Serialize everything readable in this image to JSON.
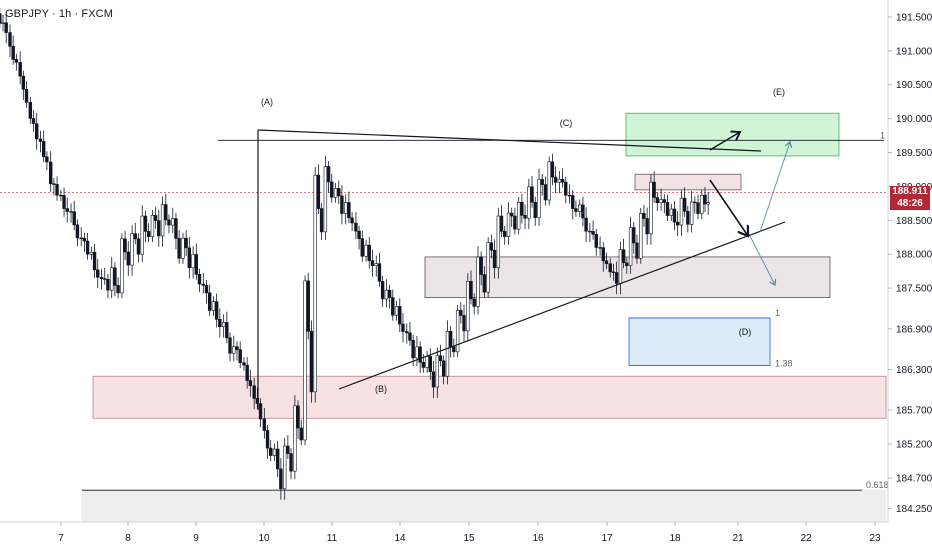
{
  "header": {
    "title": "GBPJPY · 1h · FXCM"
  },
  "price_tag": {
    "price": "188.911",
    "countdown": "48:26"
  },
  "colors": {
    "up": "#26a69a",
    "down": "#ef5350",
    "candle": "#131722",
    "target_zone": "#c8f2cf",
    "support_zone": "#f6dde0",
    "consolidation_zone": "#e6e0e2",
    "projection_zone": "#d6e8f6"
  },
  "chart_data": {
    "type": "candlestick",
    "symbol": "GBPJPY",
    "timeframe": "1h",
    "source": "FXCM",
    "ylim": [
      184.05,
      191.75
    ],
    "y_ticks": [
      "191.500",
      "191.000",
      "190.500",
      "190.000",
      "189.500",
      "189.000",
      "188.500",
      "188.000",
      "187.500",
      "186.900",
      "186.300",
      "185.700",
      "185.200",
      "184.700",
      "184.250"
    ],
    "x_ticks": [
      "7",
      "8",
      "9",
      "10",
      "11",
      "14",
      "15",
      "16",
      "17",
      "18",
      "21",
      "22",
      "23"
    ],
    "wave_labels": [
      "(A)",
      "(B)",
      "(C)",
      "(D)",
      "(E)"
    ],
    "fib_labels": [
      "1",
      "1",
      "1.38",
      "0.618"
    ],
    "current_price": 188.911,
    "price_path": [
      [
        191.55,
        191.3
      ],
      [
        191.2,
        190.8
      ],
      [
        190.7,
        190.3
      ],
      [
        190.2,
        189.7
      ],
      [
        189.8,
        189.3
      ],
      [
        189.2,
        188.9
      ],
      [
        189.0,
        188.6
      ],
      [
        188.7,
        188.3
      ],
      [
        188.4,
        188.0
      ],
      [
        188.2,
        187.6
      ],
      [
        187.8,
        187.5
      ],
      [
        188.0,
        187.4
      ],
      [
        188.3,
        187.9
      ],
      [
        188.5,
        188.0
      ],
      [
        188.7,
        188.2
      ],
      [
        188.8,
        188.3
      ],
      [
        188.9,
        188.4
      ],
      [
        188.7,
        188.0
      ],
      [
        188.5,
        187.8
      ],
      [
        188.2,
        187.5
      ],
      [
        187.8,
        187.2
      ],
      [
        187.5,
        186.9
      ],
      [
        187.1,
        186.6
      ],
      [
        186.8,
        186.4
      ],
      [
        186.5,
        186.0
      ],
      [
        186.1,
        185.6
      ],
      [
        185.6,
        185.0
      ],
      [
        185.3,
        184.6
      ],
      [
        185.4,
        184.8
      ],
      [
        186.0,
        185.2
      ],
      [
        188.5,
        186.0
      ],
      [
        189.6,
        188.3
      ],
      [
        189.4,
        188.9
      ],
      [
        189.2,
        188.6
      ],
      [
        188.9,
        188.4
      ],
      [
        188.6,
        188.0
      ],
      [
        188.3,
        187.8
      ],
      [
        188.0,
        187.4
      ],
      [
        187.7,
        187.1
      ],
      [
        187.4,
        186.8
      ],
      [
        187.1,
        186.5
      ],
      [
        186.8,
        186.3
      ],
      [
        186.6,
        186.1
      ],
      [
        186.7,
        186.2
      ],
      [
        187.0,
        186.5
      ],
      [
        187.4,
        186.9
      ],
      [
        187.8,
        187.2
      ],
      [
        188.1,
        187.5
      ],
      [
        188.4,
        187.8
      ],
      [
        188.7,
        188.2
      ],
      [
        188.8,
        188.4
      ],
      [
        188.9,
        188.5
      ],
      [
        189.1,
        188.6
      ],
      [
        189.3,
        188.8
      ],
      [
        189.5,
        189.0
      ],
      [
        189.3,
        188.9
      ],
      [
        189.0,
        188.6
      ],
      [
        188.8,
        188.4
      ],
      [
        188.5,
        188.1
      ],
      [
        188.2,
        187.8
      ],
      [
        187.9,
        187.6
      ],
      [
        188.2,
        187.8
      ],
      [
        188.5,
        188.0
      ],
      [
        188.8,
        188.3
      ],
      [
        189.2,
        188.7
      ],
      [
        189.0,
        188.6
      ],
      [
        188.8,
        188.4
      ],
      [
        188.9,
        188.5
      ],
      [
        188.9,
        188.6
      ],
      [
        188.911,
        188.7
      ]
    ],
    "zones": [
      {
        "name": "target-zone",
        "range": [
          189.45,
          190.08
        ]
      },
      {
        "name": "resistance-zone",
        "range": [
          188.95,
          189.18
        ]
      },
      {
        "name": "consolidation-zone",
        "range": [
          187.36,
          187.96
        ]
      },
      {
        "name": "projection-zone-d",
        "range": [
          186.36,
          187.06
        ]
      },
      {
        "name": "support-zone",
        "range": [
          185.58,
          186.2
        ]
      },
      {
        "name": "bottom-zone",
        "range": [
          184.05,
          184.52
        ]
      }
    ],
    "levels": [
      {
        "label": "1",
        "price": 189.68
      },
      {
        "label": "1",
        "price": 187.06
      },
      {
        "label": "1.38",
        "price": 186.36
      },
      {
        "label": "0.618",
        "price": 184.52
      }
    ],
    "grid": false
  }
}
